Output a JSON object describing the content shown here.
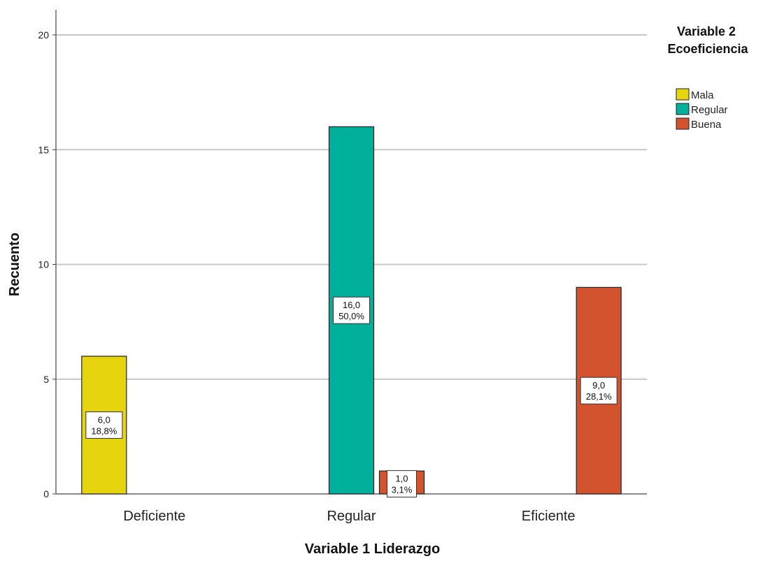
{
  "chart_data": {
    "type": "bar",
    "categories": [
      "Deficiente",
      "Regular",
      "Eficiente"
    ],
    "xlabel": "Variable 1 Liderazgo",
    "ylabel": "Recuento",
    "ylim": [
      0,
      21
    ],
    "yticks": [
      0,
      5,
      10,
      15,
      20
    ],
    "grid": true,
    "legend": {
      "title_lines": [
        "Variable 2",
        "Ecoeficiencia"
      ],
      "placement": "top-right"
    },
    "series": [
      {
        "name": "Mala",
        "color": "#e6d40f",
        "values": [
          6,
          0,
          0
        ],
        "labels": [
          [
            "6,0",
            "18,8%"
          ],
          null,
          null
        ]
      },
      {
        "name": "Regular",
        "color": "#00b09b",
        "values": [
          0,
          16,
          0
        ],
        "labels": [
          null,
          [
            "16,0",
            "50,0%"
          ],
          null
        ]
      },
      {
        "name": "Buena",
        "color": "#d4532f",
        "values": [
          0,
          1,
          9
        ],
        "labels": [
          null,
          [
            "1,0",
            "3,1%"
          ],
          [
            "9,0",
            "28,1%"
          ]
        ]
      }
    ]
  }
}
